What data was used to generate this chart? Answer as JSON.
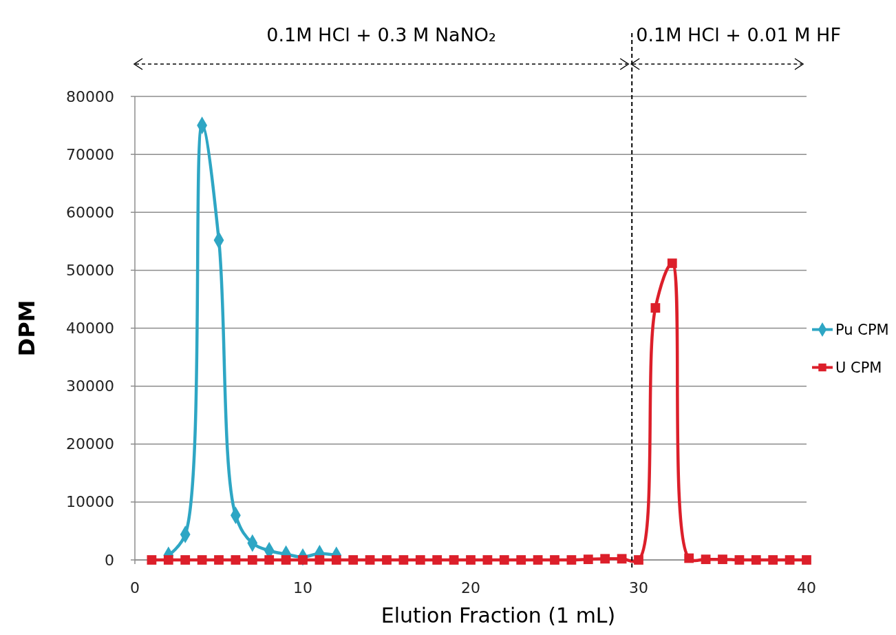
{
  "chart_data": {
    "type": "line",
    "xlabel": "Elution Fraction (1 mL)",
    "ylabel": "DPM",
    "xlim": [
      0,
      40
    ],
    "xticks": [
      0,
      10,
      20,
      30,
      40
    ],
    "ylim": [
      0,
      80000
    ],
    "yticks": [
      0,
      10000,
      20000,
      30000,
      40000,
      50000,
      60000,
      70000,
      80000
    ],
    "grid": "y",
    "legend": "right",
    "line_style": "solid",
    "series": [
      {
        "name": "Pu CPM",
        "color": "#2ea6c4",
        "marker": "diamond",
        "x": [
          2,
          3,
          4,
          5,
          6,
          7,
          8,
          9,
          10,
          11,
          12
        ],
        "values": [
          800,
          4400,
          75000,
          55200,
          7700,
          2900,
          1600,
          1000,
          500,
          1100,
          800
        ]
      },
      {
        "name": "U CPM",
        "color": "#dc1f2a",
        "marker": "square",
        "x": [
          1,
          2,
          3,
          4,
          5,
          6,
          7,
          8,
          9,
          10,
          11,
          12,
          13,
          14,
          15,
          16,
          17,
          18,
          19,
          20,
          21,
          22,
          23,
          24,
          25,
          26,
          27,
          28,
          29,
          30,
          31,
          32,
          33,
          34,
          35,
          36,
          37,
          38,
          39,
          40
        ],
        "values": [
          0,
          0,
          0,
          0,
          0,
          0,
          0,
          0,
          0,
          0,
          0,
          0,
          0,
          0,
          0,
          0,
          0,
          0,
          0,
          0,
          0,
          0,
          0,
          0,
          0,
          0,
          100,
          200,
          200,
          0,
          43500,
          51200,
          300,
          100,
          100,
          0,
          0,
          0,
          0,
          0
        ]
      }
    ],
    "ref_lines": [
      {
        "axis": "x",
        "value": 29.6,
        "color": "#000000",
        "line_style": "dashed"
      }
    ],
    "annotations": [
      "0.1M HCl + 0.3 M NaNO₂",
      "0.1M HCl + 0.01 M HF"
    ]
  }
}
